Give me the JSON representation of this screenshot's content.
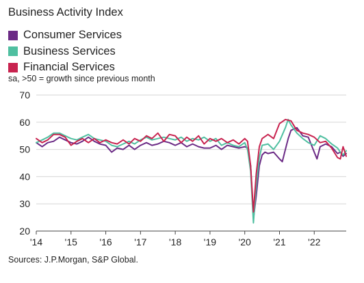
{
  "chart_data": {
    "type": "line",
    "title": "Business Activity Index",
    "subtitle": "sa, >50 = growth since previous month",
    "source": "Sources: J.P.Morgan, S&P Global.",
    "xlabel": "",
    "ylabel": "",
    "ylim": [
      20,
      70
    ],
    "yticks": [
      20,
      30,
      40,
      50,
      60,
      70
    ],
    "xlim": [
      2014.0,
      2022.92
    ],
    "xticks": [
      {
        "value": 2014,
        "label": "'14"
      },
      {
        "value": 2015,
        "label": "'15"
      },
      {
        "value": 2016,
        "label": "'16"
      },
      {
        "value": 2017,
        "label": "'17"
      },
      {
        "value": 2018,
        "label": "'18"
      },
      {
        "value": 2019,
        "label": "'19"
      },
      {
        "value": 2020,
        "label": "'20"
      },
      {
        "value": 2021,
        "label": "'21"
      },
      {
        "value": 2022,
        "label": "'22"
      }
    ],
    "grid": "horizontal",
    "legend_position": "top-left",
    "series": [
      {
        "name": "Consumer Services",
        "color": "#6b2a85",
        "points": [
          [
            2014.0,
            52.5
          ],
          [
            2014.17,
            51
          ],
          [
            2014.33,
            52.5
          ],
          [
            2014.5,
            53
          ],
          [
            2014.67,
            54.5
          ],
          [
            2014.83,
            53.5
          ],
          [
            2015.0,
            52.5
          ],
          [
            2015.17,
            52
          ],
          [
            2015.33,
            53
          ],
          [
            2015.5,
            54.5
          ],
          [
            2015.67,
            53
          ],
          [
            2015.83,
            52
          ],
          [
            2016.0,
            51.5
          ],
          [
            2016.17,
            49
          ],
          [
            2016.33,
            50.5
          ],
          [
            2016.5,
            50
          ],
          [
            2016.67,
            51.5
          ],
          [
            2016.83,
            50
          ],
          [
            2017.0,
            51.5
          ],
          [
            2017.17,
            52.5
          ],
          [
            2017.33,
            51.5
          ],
          [
            2017.5,
            52
          ],
          [
            2017.67,
            53
          ],
          [
            2017.83,
            52.5
          ],
          [
            2018.0,
            51.5
          ],
          [
            2018.17,
            52.5
          ],
          [
            2018.33,
            51
          ],
          [
            2018.5,
            52
          ],
          [
            2018.67,
            51
          ],
          [
            2018.83,
            50.5
          ],
          [
            2019.0,
            50.5
          ],
          [
            2019.17,
            51.5
          ],
          [
            2019.33,
            50
          ],
          [
            2019.5,
            51.5
          ],
          [
            2019.67,
            51
          ],
          [
            2019.83,
            50.5
          ],
          [
            2020.0,
            51
          ],
          [
            2020.08,
            50.5
          ],
          [
            2020.17,
            44
          ],
          [
            2020.25,
            24.5
          ],
          [
            2020.33,
            33
          ],
          [
            2020.42,
            44
          ],
          [
            2020.5,
            48
          ],
          [
            2020.58,
            49
          ],
          [
            2020.67,
            48.5
          ],
          [
            2020.83,
            49
          ],
          [
            2021.0,
            46.5
          ],
          [
            2021.08,
            45.5
          ],
          [
            2021.17,
            50
          ],
          [
            2021.25,
            54
          ],
          [
            2021.33,
            57
          ],
          [
            2021.5,
            58
          ],
          [
            2021.67,
            55
          ],
          [
            2021.83,
            54.5
          ],
          [
            2022.0,
            49
          ],
          [
            2022.08,
            46.5
          ],
          [
            2022.17,
            51
          ],
          [
            2022.33,
            52
          ],
          [
            2022.5,
            51
          ],
          [
            2022.67,
            48.5
          ],
          [
            2022.75,
            49
          ],
          [
            2022.83,
            47.5
          ],
          [
            2022.92,
            48.5
          ]
        ]
      },
      {
        "name": "Business Services",
        "color": "#4fbfa0",
        "points": [
          [
            2014.0,
            52.5
          ],
          [
            2014.17,
            53.5
          ],
          [
            2014.33,
            54.5
          ],
          [
            2014.5,
            56
          ],
          [
            2014.67,
            56
          ],
          [
            2014.83,
            55
          ],
          [
            2015.0,
            54
          ],
          [
            2015.17,
            53.5
          ],
          [
            2015.33,
            54.5
          ],
          [
            2015.5,
            55.5
          ],
          [
            2015.67,
            54
          ],
          [
            2015.83,
            53.5
          ],
          [
            2016.0,
            53
          ],
          [
            2016.17,
            51.5
          ],
          [
            2016.33,
            51
          ],
          [
            2016.5,
            52
          ],
          [
            2016.67,
            53
          ],
          [
            2016.83,
            52
          ],
          [
            2017.0,
            53.5
          ],
          [
            2017.17,
            54.5
          ],
          [
            2017.33,
            53.5
          ],
          [
            2017.5,
            54
          ],
          [
            2017.67,
            54.5
          ],
          [
            2017.83,
            54
          ],
          [
            2018.0,
            53.5
          ],
          [
            2018.17,
            54.5
          ],
          [
            2018.33,
            53
          ],
          [
            2018.5,
            54
          ],
          [
            2018.67,
            53.5
          ],
          [
            2018.83,
            54.5
          ],
          [
            2019.0,
            53
          ],
          [
            2019.17,
            54
          ],
          [
            2019.33,
            51.5
          ],
          [
            2019.5,
            52.5
          ],
          [
            2019.67,
            51.5
          ],
          [
            2019.83,
            51
          ],
          [
            2020.0,
            52.5
          ],
          [
            2020.08,
            50
          ],
          [
            2020.17,
            42
          ],
          [
            2020.25,
            23
          ],
          [
            2020.33,
            37
          ],
          [
            2020.42,
            47
          ],
          [
            2020.5,
            51.5
          ],
          [
            2020.67,
            52
          ],
          [
            2020.83,
            50
          ],
          [
            2021.0,
            53
          ],
          [
            2021.17,
            58
          ],
          [
            2021.25,
            61
          ],
          [
            2021.33,
            59
          ],
          [
            2021.5,
            56
          ],
          [
            2021.67,
            54
          ],
          [
            2021.83,
            52.5
          ],
          [
            2022.0,
            51.5
          ],
          [
            2022.17,
            55
          ],
          [
            2022.33,
            54
          ],
          [
            2022.5,
            52
          ],
          [
            2022.67,
            50.5
          ],
          [
            2022.75,
            49
          ],
          [
            2022.83,
            48
          ],
          [
            2022.92,
            49.5
          ]
        ]
      },
      {
        "name": "Financial Services",
        "color": "#c8234f",
        "points": [
          [
            2014.0,
            54
          ],
          [
            2014.17,
            52.5
          ],
          [
            2014.33,
            53.5
          ],
          [
            2014.5,
            55.5
          ],
          [
            2014.67,
            55.5
          ],
          [
            2014.83,
            54.5
          ],
          [
            2015.0,
            51.5
          ],
          [
            2015.17,
            53
          ],
          [
            2015.33,
            54
          ],
          [
            2015.5,
            52.5
          ],
          [
            2015.67,
            54
          ],
          [
            2015.83,
            52.5
          ],
          [
            2016.0,
            53.5
          ],
          [
            2016.17,
            52.5
          ],
          [
            2016.33,
            52
          ],
          [
            2016.5,
            53.5
          ],
          [
            2016.67,
            52
          ],
          [
            2016.83,
            54
          ],
          [
            2017.0,
            53
          ],
          [
            2017.17,
            55
          ],
          [
            2017.33,
            54
          ],
          [
            2017.5,
            56
          ],
          [
            2017.67,
            53
          ],
          [
            2017.83,
            55.5
          ],
          [
            2018.0,
            55
          ],
          [
            2018.17,
            52.5
          ],
          [
            2018.33,
            54.5
          ],
          [
            2018.5,
            53
          ],
          [
            2018.67,
            55
          ],
          [
            2018.83,
            52
          ],
          [
            2019.0,
            54
          ],
          [
            2019.17,
            53
          ],
          [
            2019.33,
            54
          ],
          [
            2019.5,
            52.5
          ],
          [
            2019.67,
            53.5
          ],
          [
            2019.83,
            52
          ],
          [
            2020.0,
            54
          ],
          [
            2020.08,
            53
          ],
          [
            2020.17,
            44
          ],
          [
            2020.25,
            27
          ],
          [
            2020.33,
            41
          ],
          [
            2020.42,
            51
          ],
          [
            2020.5,
            54
          ],
          [
            2020.67,
            55.5
          ],
          [
            2020.83,
            54
          ],
          [
            2021.0,
            59.5
          ],
          [
            2021.17,
            61
          ],
          [
            2021.33,
            60.5
          ],
          [
            2021.5,
            57
          ],
          [
            2021.67,
            56
          ],
          [
            2021.83,
            55.5
          ],
          [
            2022.0,
            54.5
          ],
          [
            2022.17,
            52.5
          ],
          [
            2022.33,
            53
          ],
          [
            2022.5,
            50.5
          ],
          [
            2022.67,
            47
          ],
          [
            2022.75,
            46.5
          ],
          [
            2022.83,
            51
          ],
          [
            2022.92,
            47.5
          ]
        ]
      }
    ]
  }
}
